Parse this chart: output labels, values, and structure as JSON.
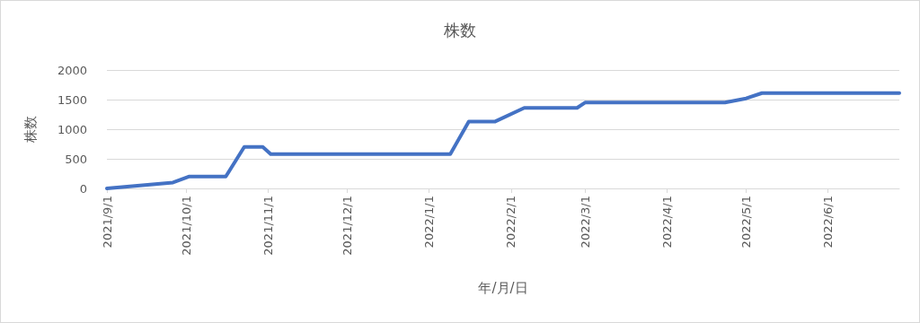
{
  "chart_data": {
    "type": "line",
    "title": "株数",
    "xlabel": "年/月/日",
    "ylabel": "株数",
    "series": [
      {
        "color": "#4472c4",
        "x": [
          "2021-09-01",
          "2021-09-26",
          "2021-10-02",
          "2021-10-16",
          "2021-10-23",
          "2021-10-30",
          "2021-11-02",
          "2022-01-09",
          "2022-01-16",
          "2022-01-26",
          "2022-02-06",
          "2022-02-26",
          "2022-03-01",
          "2022-04-23",
          "2022-05-01",
          "2022-05-07",
          "2022-06-28"
        ],
        "values": [
          0,
          100,
          200,
          200,
          700,
          700,
          580,
          580,
          1130,
          1130,
          1360,
          1360,
          1450,
          1450,
          1520,
          1610,
          1610
        ]
      }
    ],
    "xlim": [
      "2021-09-01",
      "2022-06-28"
    ],
    "xticks": [
      {
        "value": "2021-09-01",
        "label": "2021/9/1"
      },
      {
        "value": "2021-10-01",
        "label": "2021/10/1"
      },
      {
        "value": "2021-11-01",
        "label": "2021/11/1"
      },
      {
        "value": "2021-12-01",
        "label": "2021/12/1"
      },
      {
        "value": "2022-01-01",
        "label": "2022/1/1"
      },
      {
        "value": "2022-02-01",
        "label": "2022/2/1"
      },
      {
        "value": "2022-03-01",
        "label": "2022/3/1"
      },
      {
        "value": "2022-04-01",
        "label": "2022/4/1"
      },
      {
        "value": "2022-05-01",
        "label": "2022/5/1"
      },
      {
        "value": "2022-06-01",
        "label": "2022/6/1"
      }
    ],
    "ylim": [
      0,
      2000
    ],
    "yticks": [
      0,
      500,
      1000,
      1500,
      2000
    ],
    "grid": "y",
    "marker": "none",
    "line_style": "solid"
  }
}
